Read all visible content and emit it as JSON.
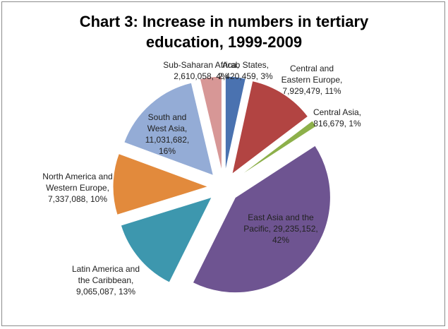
{
  "chart_data": {
    "type": "pie",
    "title_lines": [
      "Chart 3: Increase in numbers in tertiary",
      "education, 1999-2009"
    ],
    "slices": [
      {
        "name": "Arab States",
        "value": 2420459,
        "value_text": "2,420,459",
        "percent_text": "3%",
        "color": "#4a72b0",
        "label_lines": [
          "Arab States,",
          "2,420,459, 3%"
        ]
      },
      {
        "name": "Central and Eastern Europe",
        "value": 7929479,
        "value_text": "7,929,479",
        "percent_text": "11%",
        "color": "#b24442",
        "label_lines": [
          "Central and",
          "Eastern Europe,",
          "7,929,479, 11%"
        ]
      },
      {
        "name": "Central Asia",
        "value": 816679,
        "value_text": "816,679",
        "percent_text": "1%",
        "color": "#8db04a",
        "label_lines": [
          "Central Asia,",
          "816,679, 1%"
        ]
      },
      {
        "name": "East Asia and the Pacific",
        "value": 29235152,
        "value_text": "29,235,152",
        "percent_text": "42%",
        "color": "#6e5491",
        "label_lines": [
          "East Asia and the",
          "Pacific, 29,235,152,",
          "42%"
        ]
      },
      {
        "name": "Latin America and the Caribbean",
        "value": 9065087,
        "value_text": "9,065,087",
        "percent_text": "13%",
        "color": "#3d97ae",
        "label_lines": [
          "Latin America and",
          "the Caribbean,",
          "9,065,087, 13%"
        ]
      },
      {
        "name": "North America and Western Europe",
        "value": 7337088,
        "value_text": "7,337,088",
        "percent_text": "10%",
        "color": "#e28a3c",
        "label_lines": [
          "North America and",
          "Western Europe,",
          "7,337,088, 10%"
        ]
      },
      {
        "name": "South and West Asia",
        "value": 11031682,
        "value_text": "11,031,682",
        "percent_text": "16%",
        "color": "#94acd6",
        "label_lines": [
          "South and",
          "West Asia,",
          "11,031,682,",
          "16%"
        ]
      },
      {
        "name": "Sub-Saharan Africa",
        "value": 2610058,
        "value_text": "2,610,058",
        "percent_text": "4%",
        "color": "#d79796",
        "label_lines": [
          "Sub-Saharan Africa,",
          "2,610,058, 4%"
        ]
      }
    ],
    "legend": "none",
    "exploded": true
  }
}
